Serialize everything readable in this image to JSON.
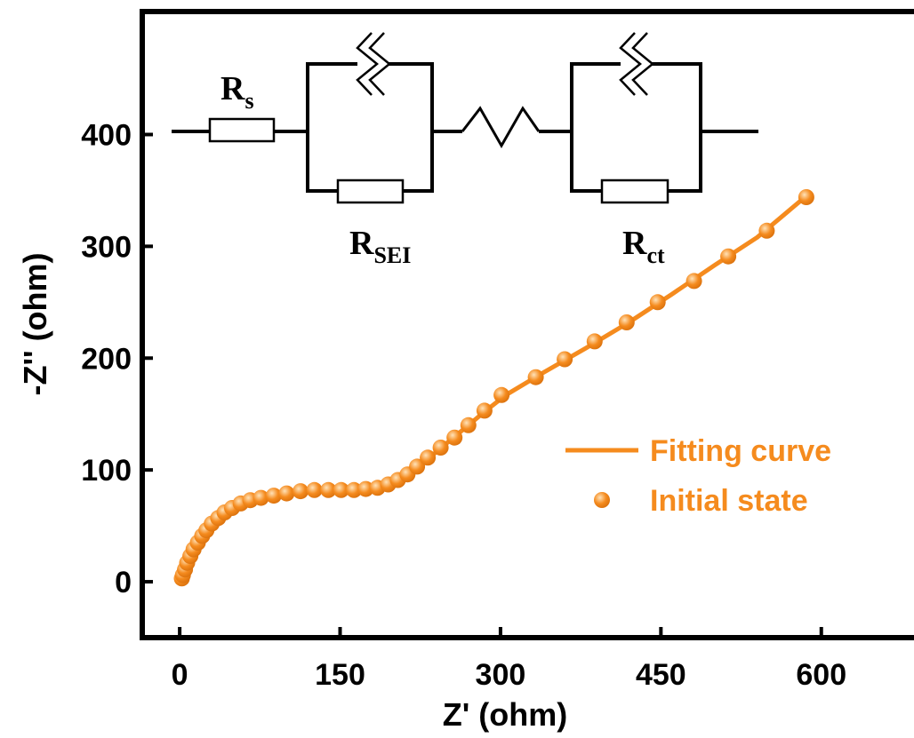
{
  "chart_data": {
    "type": "scatter",
    "xlabel": "Z' (ohm)",
    "ylabel": "-Z'' (ohm)",
    "xlim": [
      -35,
      690
    ],
    "ylim": [
      -50,
      510
    ],
    "xticks": [
      0,
      150,
      300,
      450,
      600
    ],
    "yticks": [
      0,
      100,
      200,
      300,
      400
    ],
    "legend": {
      "position": "right-middle",
      "entries": [
        {
          "label": "Fitting curve",
          "marker": "line"
        },
        {
          "label": "Initial state",
          "marker": "circle"
        }
      ]
    },
    "series": [
      {
        "name": "Initial state",
        "style": "markers",
        "color": "#F58B1E",
        "points": [
          [
            2,
            3
          ],
          [
            3,
            6
          ],
          [
            5,
            11
          ],
          [
            7,
            17
          ],
          [
            10,
            23
          ],
          [
            13,
            29
          ],
          [
            17,
            35
          ],
          [
            21,
            41
          ],
          [
            25,
            46
          ],
          [
            30,
            52
          ],
          [
            36,
            57
          ],
          [
            42,
            62
          ],
          [
            49,
            66
          ],
          [
            57,
            70
          ],
          [
            66,
            73
          ],
          [
            76,
            75
          ],
          [
            88,
            77
          ],
          [
            100,
            79
          ],
          [
            113,
            81
          ],
          [
            126,
            82
          ],
          [
            139,
            82
          ],
          [
            151,
            82
          ],
          [
            163,
            82
          ],
          [
            174,
            83
          ],
          [
            185,
            84
          ],
          [
            195,
            87
          ],
          [
            204,
            91
          ],
          [
            213,
            96
          ],
          [
            222,
            103
          ],
          [
            232,
            111
          ],
          [
            244,
            120
          ],
          [
            257,
            129
          ],
          [
            270,
            140
          ],
          [
            285,
            153
          ],
          [
            301,
            167
          ],
          [
            333,
            183
          ],
          [
            360,
            199
          ],
          [
            388,
            215
          ],
          [
            418,
            232
          ],
          [
            447,
            250
          ],
          [
            481,
            269
          ],
          [
            513,
            291
          ],
          [
            549,
            314
          ],
          [
            586,
            344
          ]
        ]
      },
      {
        "name": "Fitting curve",
        "style": "line",
        "color": "#F58B1E",
        "points": [
          [
            1,
            0
          ],
          [
            2,
            4
          ],
          [
            4,
            9
          ],
          [
            7,
            16
          ],
          [
            11,
            24
          ],
          [
            16,
            33
          ],
          [
            22,
            41
          ],
          [
            30,
            50
          ],
          [
            40,
            58
          ],
          [
            52,
            65
          ],
          [
            66,
            71
          ],
          [
            82,
            75
          ],
          [
            100,
            79
          ],
          [
            120,
            81
          ],
          [
            140,
            82
          ],
          [
            160,
            82
          ],
          [
            178,
            83
          ],
          [
            192,
            85
          ],
          [
            204,
            90
          ],
          [
            216,
            97
          ],
          [
            230,
            108
          ],
          [
            246,
            121
          ],
          [
            265,
            136
          ],
          [
            285,
            152
          ],
          [
            305,
            167
          ],
          [
            340,
            187
          ],
          [
            380,
            209
          ],
          [
            420,
            232
          ],
          [
            460,
            257
          ],
          [
            500,
            283
          ],
          [
            540,
            308
          ],
          [
            586,
            345
          ]
        ]
      }
    ]
  },
  "circuit": {
    "r_s_main": "R",
    "r_s_sub": "s",
    "r_sei_main": "R",
    "r_sei_sub": "SEI",
    "r_ct_main": "R",
    "r_ct_sub": "ct"
  },
  "colors": {
    "series": "#F58B1E",
    "axis": "#000000"
  }
}
